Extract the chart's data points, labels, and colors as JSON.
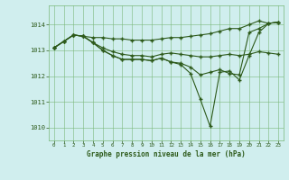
{
  "background_color": "#d0eeee",
  "grid_color": "#7ab87a",
  "line_color": "#2d5a1a",
  "title": "Graphe pression niveau de la mer (hPa)",
  "xlim": [
    -0.5,
    23.5
  ],
  "ylim": [
    1009.5,
    1014.75
  ],
  "yticks": [
    1010,
    1011,
    1012,
    1013,
    1014
  ],
  "xticks": [
    0,
    1,
    2,
    3,
    4,
    5,
    6,
    7,
    8,
    9,
    10,
    11,
    12,
    13,
    14,
    15,
    16,
    17,
    18,
    19,
    20,
    21,
    22,
    23
  ],
  "series": [
    {
      "x": [
        0,
        1,
        2,
        3,
        4,
        5,
        6,
        7,
        8,
        9,
        10,
        11,
        12,
        13,
        14,
        15,
        16,
        17,
        18,
        19,
        20,
        21,
        22,
        23
      ],
      "y": [
        1013.1,
        1013.35,
        1013.6,
        1013.55,
        1013.5,
        1013.5,
        1013.45,
        1013.45,
        1013.4,
        1013.4,
        1013.4,
        1013.45,
        1013.5,
        1013.5,
        1013.55,
        1013.6,
        1013.65,
        1013.75,
        1013.85,
        1013.85,
        1014.0,
        1014.15,
        1014.05,
        1014.1
      ]
    },
    {
      "x": [
        0,
        1,
        2,
        3,
        4,
        5,
        6,
        7,
        8,
        9,
        10,
        11,
        12,
        13,
        14,
        15,
        16,
        17,
        18,
        19,
        20,
        21,
        22,
        23
      ],
      "y": [
        1013.1,
        1013.35,
        1013.6,
        1013.55,
        1013.3,
        1013.1,
        1012.95,
        1012.85,
        1012.8,
        1012.8,
        1012.75,
        1012.85,
        1012.9,
        1012.85,
        1012.8,
        1012.75,
        1012.75,
        1012.8,
        1012.85,
        1012.8,
        1012.85,
        1012.95,
        1012.9,
        1012.85
      ]
    },
    {
      "x": [
        0,
        1,
        2,
        3,
        4,
        5,
        6,
        7,
        8,
        9,
        10,
        11,
        12,
        13,
        14,
        15,
        16,
        17,
        18,
        19,
        20,
        21,
        22,
        23
      ],
      "y": [
        1013.1,
        1013.35,
        1013.6,
        1013.55,
        1013.3,
        1013.0,
        1012.8,
        1012.65,
        1012.65,
        1012.65,
        1012.6,
        1012.7,
        1012.55,
        1012.5,
        1012.35,
        1012.05,
        1012.15,
        1012.25,
        1012.1,
        1012.05,
        1013.7,
        1013.85,
        1014.05,
        1014.1
      ]
    },
    {
      "x": [
        0,
        1,
        2,
        3,
        4,
        5,
        6,
        7,
        8,
        9,
        10,
        11,
        12,
        13,
        14,
        15,
        16,
        17,
        18,
        19,
        20,
        21,
        22,
        23
      ],
      "y": [
        1013.1,
        1013.35,
        1013.6,
        1013.55,
        1013.3,
        1013.0,
        1012.8,
        1012.65,
        1012.65,
        1012.65,
        1012.6,
        1012.7,
        1012.55,
        1012.45,
        1012.1,
        1011.1,
        1010.05,
        1012.15,
        1012.2,
        1011.85,
        1012.8,
        1013.7,
        1014.05,
        1014.1
      ]
    }
  ]
}
